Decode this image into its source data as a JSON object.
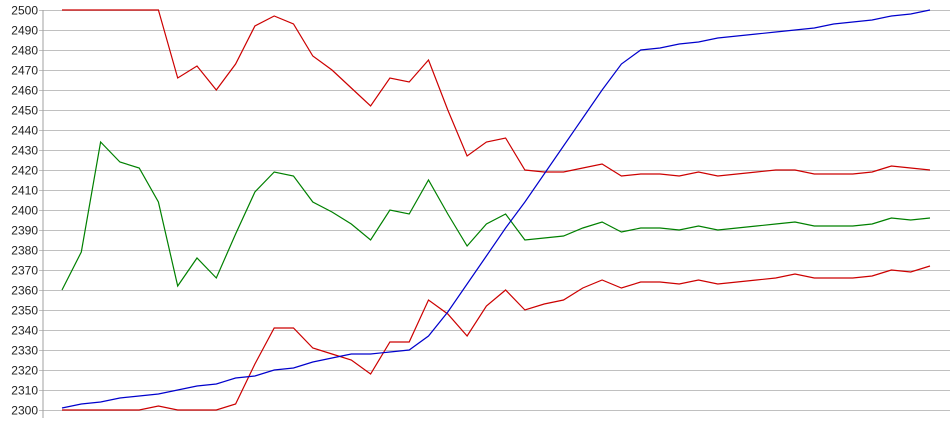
{
  "chart_data": {
    "type": "line",
    "title": "",
    "xlabel": "",
    "ylabel": "",
    "ylim": [
      2300,
      2500
    ],
    "yticks": [
      2300,
      2310,
      2320,
      2330,
      2340,
      2350,
      2360,
      2370,
      2380,
      2390,
      2400,
      2410,
      2420,
      2430,
      2440,
      2450,
      2460,
      2470,
      2480,
      2490,
      2500
    ],
    "grid": "horizontal",
    "legend": "none",
    "series": [
      {
        "color": "#cc0000",
        "values": [
          2500,
          2500,
          2500,
          2500,
          2500,
          2500,
          2466,
          2472,
          2460,
          2473,
          2492,
          2497,
          2493,
          2477,
          2470,
          2461,
          2452,
          2466,
          2464,
          2475,
          2450,
          2427,
          2434,
          2436,
          2420,
          2419,
          2419,
          2421,
          2423,
          2417,
          2418,
          2418,
          2417,
          2419,
          2417,
          2418,
          2419,
          2420,
          2420,
          2418,
          2418,
          2418,
          2419,
          2422,
          2421,
          2420
        ]
      },
      {
        "color": "#008000",
        "values": [
          2360,
          2379,
          2434,
          2424,
          2421,
          2404,
          2362,
          2376,
          2366,
          2388,
          2409,
          2419,
          2417,
          2404,
          2399,
          2393,
          2385,
          2400,
          2398,
          2415,
          2398,
          2382,
          2393,
          2398,
          2385,
          2386,
          2387,
          2391,
          2394,
          2389,
          2391,
          2391,
          2390,
          2392,
          2390,
          2391,
          2392,
          2393,
          2394,
          2392,
          2392,
          2392,
          2393,
          2396,
          2395,
          2396
        ]
      },
      {
        "color": "#cc0000",
        "values": [
          2300,
          2300,
          2300,
          2300,
          2300,
          2302,
          2300,
          2300,
          2300,
          2303,
          2323,
          2341,
          2341,
          2331,
          2328,
          2325,
          2318,
          2334,
          2334,
          2355,
          2348,
          2337,
          2352,
          2360,
          2350,
          2353,
          2355,
          2361,
          2365,
          2361,
          2364,
          2364,
          2363,
          2365,
          2363,
          2364,
          2365,
          2366,
          2368,
          2366,
          2366,
          2366,
          2367,
          2370,
          2369,
          2372
        ]
      },
      {
        "color": "#0000cc",
        "values": [
          2301,
          2303,
          2304,
          2306,
          2307,
          2308,
          2310,
          2312,
          2313,
          2316,
          2317,
          2320,
          2321,
          2324,
          2326,
          2328,
          2328,
          2329,
          2330,
          2337,
          2349,
          2363,
          2377,
          2391,
          2404,
          2418,
          2432,
          2446,
          2460,
          2473,
          2480,
          2481,
          2483,
          2484,
          2486,
          2487,
          2488,
          2489,
          2490,
          2491,
          2493,
          2494,
          2495,
          2497,
          2498,
          2500
        ]
      }
    ]
  }
}
